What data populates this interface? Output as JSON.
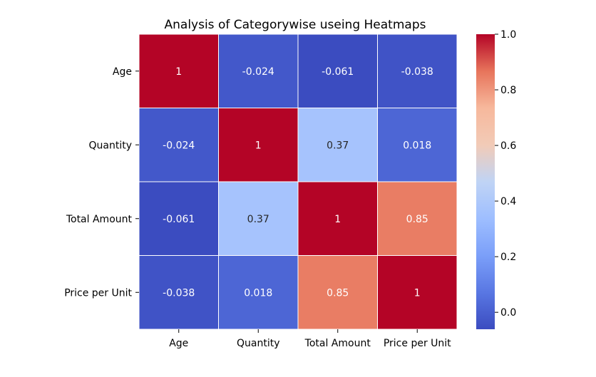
{
  "chart_data": {
    "type": "heatmap",
    "title": "Analysis of Categorywise useing Heatmaps",
    "xlabel": "",
    "ylabel": "",
    "x_categories": [
      "Age",
      "Quantity",
      "Total Amount",
      "Price per Unit"
    ],
    "y_categories": [
      "Age",
      "Quantity",
      "Total Amount",
      "Price per Unit"
    ],
    "values": [
      [
        1,
        -0.024,
        -0.061,
        -0.038
      ],
      [
        -0.024,
        1,
        0.37,
        0.018
      ],
      [
        -0.061,
        0.37,
        1,
        0.85
      ],
      [
        -0.038,
        0.018,
        0.85,
        1
      ]
    ],
    "annotations": [
      [
        "1",
        "-0.024",
        "-0.061",
        "-0.038"
      ],
      [
        "-0.024",
        "1",
        "0.37",
        "0.018"
      ],
      [
        "-0.061",
        "0.37",
        "1",
        "0.85"
      ],
      [
        "-0.038",
        "0.018",
        "0.85",
        "1"
      ]
    ],
    "colormap": "coolwarm",
    "color_range": [
      -0.061,
      1
    ],
    "colorbar_ticks": [
      0.0,
      0.2,
      0.4,
      0.6,
      0.8,
      1.0
    ],
    "colorbar_tick_labels": [
      "0.0",
      "0.2",
      "0.4",
      "0.6",
      "0.8",
      "1.0"
    ],
    "grid": false,
    "legend": "colorbar-right"
  }
}
